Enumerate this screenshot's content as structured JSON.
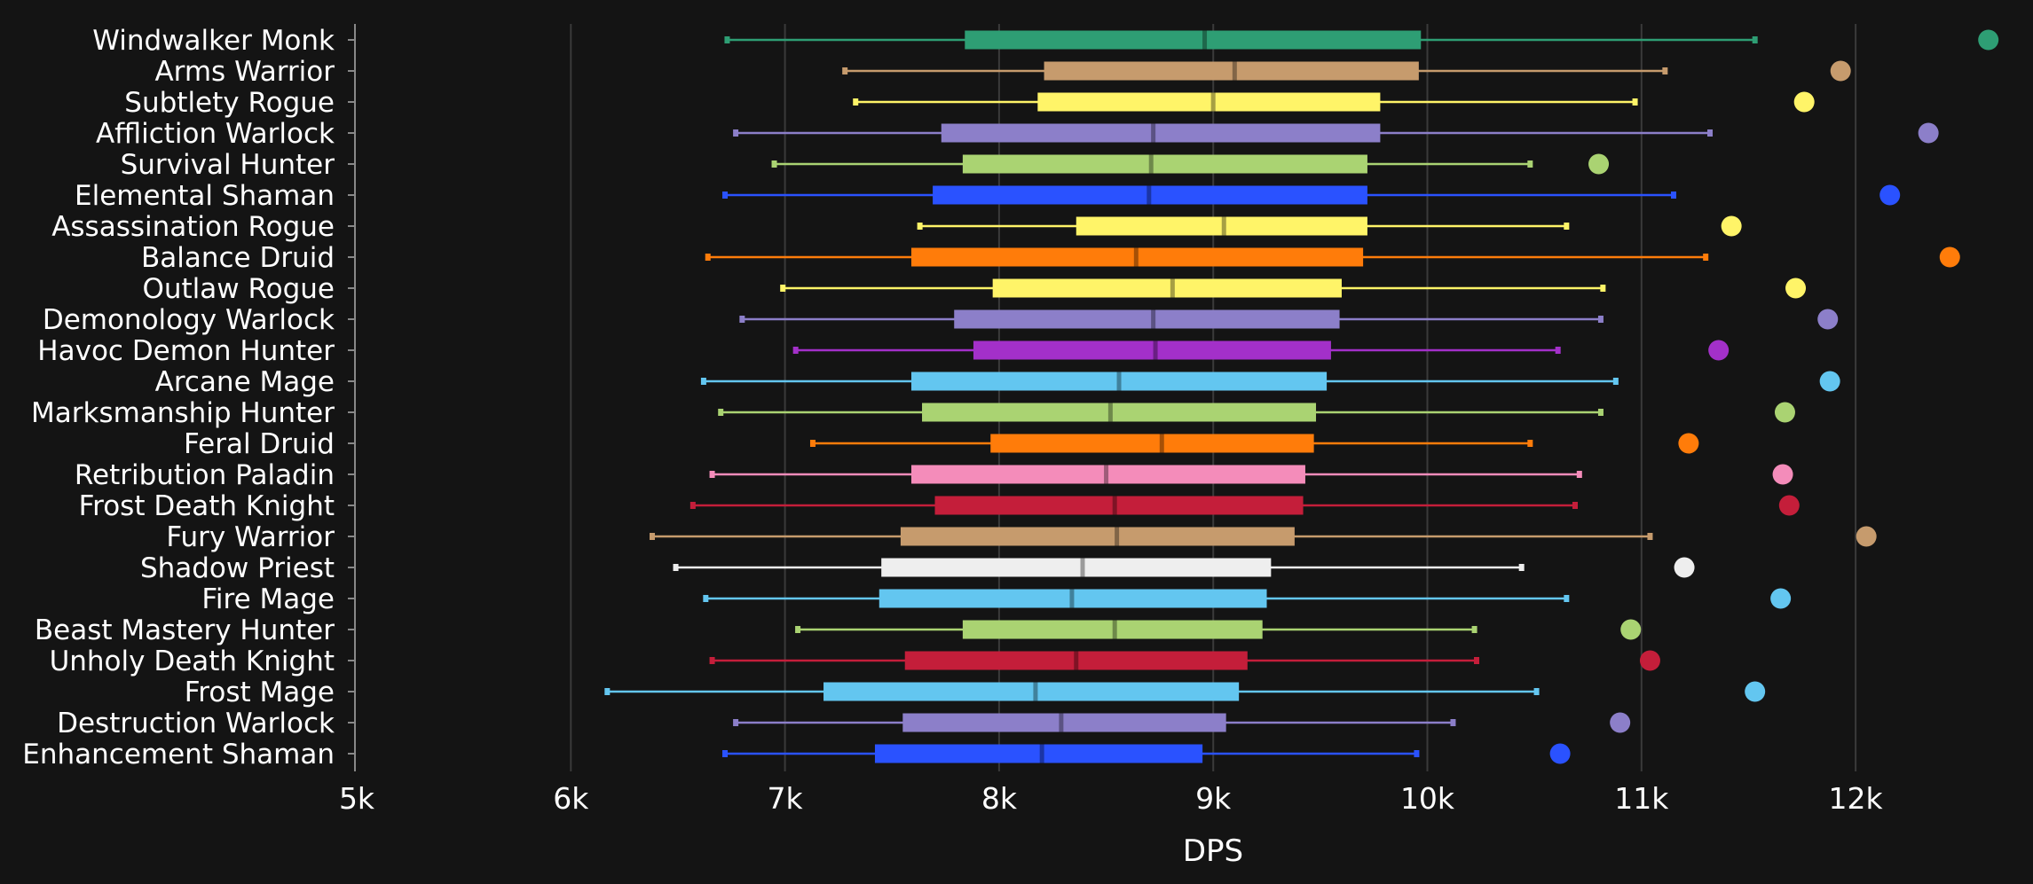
{
  "chart_data": {
    "type": "box",
    "orientation": "horizontal",
    "title": "",
    "xlabel": "DPS",
    "ylabel": "",
    "xlim": [
      5000,
      12800
    ],
    "x_ticks": [
      5000,
      6000,
      7000,
      8000,
      9000,
      10000,
      11000,
      12000
    ],
    "x_tick_labels": [
      "5k",
      "6k",
      "7k",
      "8k",
      "9k",
      "10k",
      "11k",
      "12k"
    ],
    "grid": "vertical",
    "background": "#141414",
    "categories": [
      {
        "name": "Windwalker Monk",
        "color": "#2e9e74",
        "min": 6730,
        "q1": 7840,
        "median": 8960,
        "q3": 9970,
        "max": 11530,
        "outlier": 12620
      },
      {
        "name": "Arms Warrior",
        "color": "#c69b6d",
        "min": 7280,
        "q1": 8210,
        "median": 9100,
        "q3": 9960,
        "max": 11110,
        "outlier": 11930
      },
      {
        "name": "Subtlety Rogue",
        "color": "#fff468",
        "min": 7330,
        "q1": 8180,
        "median": 9000,
        "q3": 9780,
        "max": 10970,
        "outlier": 11760
      },
      {
        "name": "Affliction Warlock",
        "color": "#8c7fc9",
        "min": 6770,
        "q1": 7730,
        "median": 8720,
        "q3": 9780,
        "max": 11320,
        "outlier": 12340
      },
      {
        "name": "Survival Hunter",
        "color": "#aad372",
        "min": 6950,
        "q1": 7830,
        "median": 8710,
        "q3": 9720,
        "max": 10480,
        "outlier": 10800
      },
      {
        "name": "Elemental Shaman",
        "color": "#2a52ff",
        "min": 6720,
        "q1": 7690,
        "median": 8700,
        "q3": 9720,
        "max": 11150,
        "outlier": 12160
      },
      {
        "name": "Assassination Rogue",
        "color": "#fff468",
        "min": 7630,
        "q1": 8360,
        "median": 9050,
        "q3": 9720,
        "max": 10650,
        "outlier": 11420
      },
      {
        "name": "Balance Druid",
        "color": "#ff7c0a",
        "min": 6640,
        "q1": 7590,
        "median": 8640,
        "q3": 9700,
        "max": 11300,
        "outlier": 12440
      },
      {
        "name": "Outlaw Rogue",
        "color": "#fff468",
        "min": 6990,
        "q1": 7970,
        "median": 8810,
        "q3": 9600,
        "max": 10820,
        "outlier": 11720
      },
      {
        "name": "Demonology Warlock",
        "color": "#8c7fc9",
        "min": 6800,
        "q1": 7790,
        "median": 8720,
        "q3": 9590,
        "max": 10810,
        "outlier": 11870
      },
      {
        "name": "Havoc Demon Hunter",
        "color": "#a330c9",
        "min": 7050,
        "q1": 7880,
        "median": 8730,
        "q3": 9550,
        "max": 10610,
        "outlier": 11360
      },
      {
        "name": "Arcane Mage",
        "color": "#63c6f0",
        "min": 6620,
        "q1": 7590,
        "median": 8560,
        "q3": 9530,
        "max": 10880,
        "outlier": 11880
      },
      {
        "name": "Marksmanship Hunter",
        "color": "#aad372",
        "min": 6700,
        "q1": 7640,
        "median": 8520,
        "q3": 9480,
        "max": 10810,
        "outlier": 11670
      },
      {
        "name": "Feral Druid",
        "color": "#ff7c0a",
        "min": 7130,
        "q1": 7960,
        "median": 8760,
        "q3": 9470,
        "max": 10480,
        "outlier": 11220
      },
      {
        "name": "Retribution Paladin",
        "color": "#f48cba",
        "min": 6660,
        "q1": 7590,
        "median": 8500,
        "q3": 9430,
        "max": 10710,
        "outlier": 11660
      },
      {
        "name": "Frost Death Knight",
        "color": "#c41e3a",
        "min": 6570,
        "q1": 7700,
        "median": 8540,
        "q3": 9420,
        "max": 10690,
        "outlier": 11690
      },
      {
        "name": "Fury Warrior",
        "color": "#c69b6d",
        "min": 6380,
        "q1": 7540,
        "median": 8550,
        "q3": 9380,
        "max": 11040,
        "outlier": 12050
      },
      {
        "name": "Shadow Priest",
        "color": "#eeeeee",
        "min": 6490,
        "q1": 7450,
        "median": 8390,
        "q3": 9270,
        "max": 10440,
        "outlier": 11200
      },
      {
        "name": "Fire Mage",
        "color": "#63c6f0",
        "min": 6630,
        "q1": 7440,
        "median": 8340,
        "q3": 9250,
        "max": 10650,
        "outlier": 11650
      },
      {
        "name": "Beast Mastery Hunter",
        "color": "#aad372",
        "min": 7060,
        "q1": 7830,
        "median": 8540,
        "q3": 9230,
        "max": 10220,
        "outlier": 10950
      },
      {
        "name": "Unholy Death Knight",
        "color": "#c41e3a",
        "min": 6660,
        "q1": 7560,
        "median": 8360,
        "q3": 9160,
        "max": 10230,
        "outlier": 11040
      },
      {
        "name": "Frost Mage",
        "color": "#63c6f0",
        "min": 6170,
        "q1": 7180,
        "median": 8170,
        "q3": 9120,
        "max": 10510,
        "outlier": 11530
      },
      {
        "name": "Destruction Warlock",
        "color": "#8c7fc9",
        "min": 6770,
        "q1": 7550,
        "median": 8290,
        "q3": 9060,
        "max": 10120,
        "outlier": 10900
      },
      {
        "name": "Enhancement Shaman",
        "color": "#2a52ff",
        "min": 6720,
        "q1": 7420,
        "median": 8200,
        "q3": 8950,
        "max": 9950,
        "outlier": 10620
      }
    ]
  }
}
